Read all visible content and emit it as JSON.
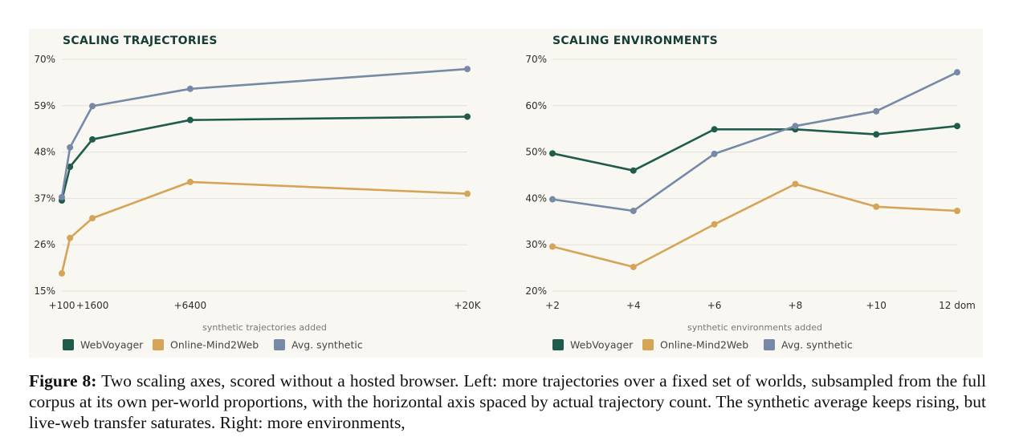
{
  "chart_data": [
    {
      "type": "line",
      "title": "SCALING TRAJECTORIES",
      "xlabel": "synthetic trajectories added",
      "ylabel": "",
      "x": [
        100,
        500,
        1600,
        6400,
        20000
      ],
      "x_tick_values": [
        100,
        1600,
        6400,
        20000
      ],
      "x_tick_labels": [
        "+100",
        "+1600",
        "+6400",
        "+20K"
      ],
      "y_tick_values": [
        15,
        26,
        37,
        48,
        59,
        70
      ],
      "y_tick_labels": [
        "15%",
        "26%",
        "37%",
        "48%",
        "59%",
        "70%"
      ],
      "ylim": [
        15,
        70
      ],
      "xlim": [
        100,
        20000
      ],
      "grid": true,
      "legend_position": "bottom-left",
      "series": [
        {
          "name": "WebVoyager",
          "color": "#1f5c4b",
          "values": [
            36.5,
            44.5,
            51.0,
            55.6,
            56.4
          ]
        },
        {
          "name": "Online-Mind2Web",
          "color": "#d6a457",
          "values": [
            19.2,
            27.6,
            32.3,
            40.9,
            38.1
          ]
        },
        {
          "name": "Avg. synthetic",
          "color": "#7689a6",
          "values": [
            37.3,
            49.1,
            58.9,
            63.0,
            67.7
          ]
        }
      ]
    },
    {
      "type": "line",
      "title": "SCALING ENVIRONMENTS",
      "xlabel": "synthetic environments added",
      "ylabel": "",
      "categories": [
        "+2",
        "+4",
        "+6",
        "+8",
        "+10",
        "12 dom"
      ],
      "y_tick_values": [
        20,
        30,
        40,
        50,
        60,
        70
      ],
      "y_tick_labels": [
        "20%",
        "30%",
        "40%",
        "50%",
        "60%",
        "70%"
      ],
      "ylim": [
        20,
        70
      ],
      "grid": true,
      "legend_position": "bottom-left",
      "series": [
        {
          "name": "WebVoyager",
          "color": "#1f5c4b",
          "values": [
            49.7,
            46.0,
            54.9,
            54.9,
            53.8,
            55.6
          ]
        },
        {
          "name": "Online-Mind2Web",
          "color": "#d6a457",
          "values": [
            29.6,
            25.2,
            34.4,
            43.1,
            38.2,
            37.3
          ]
        },
        {
          "name": "Avg. synthetic",
          "color": "#7689a6",
          "values": [
            39.8,
            37.3,
            49.6,
            55.6,
            58.8,
            67.2
          ]
        }
      ]
    }
  ],
  "caption": {
    "label": "Figure 8:",
    "text": "Two scaling axes, scored without a hosted browser. Left: more trajectories over a fixed set of worlds, subsampled from the full corpus at its own per-world proportions, with the horizontal axis spaced by actual trajectory count. The synthetic average keeps rising, but live-web transfer saturates. Right: more environments,"
  }
}
